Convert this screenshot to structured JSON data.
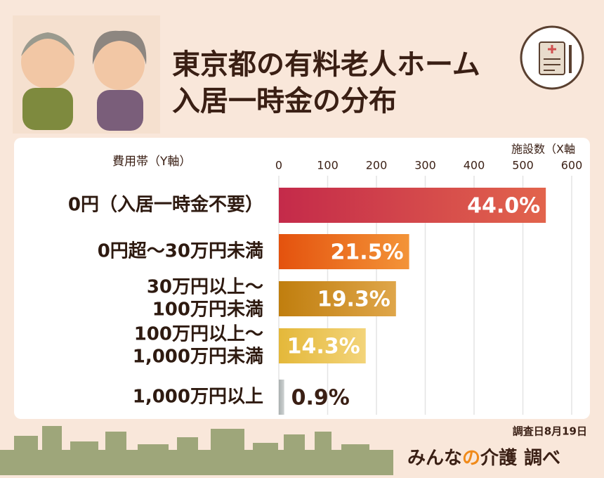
{
  "header": {
    "title_lines": [
      "東京都の有料老人ホーム",
      "入居一時金の分布"
    ]
  },
  "chart_data": {
    "type": "bar",
    "orientation": "horizontal",
    "y_axis_label": "費用帯（Y軸）",
    "x_axis_label": "施設数（X軸",
    "categories": [
      [
        "0円（入居一時金不要）"
      ],
      [
        "0円超～30万円未満"
      ],
      [
        "30万円以上～",
        "100万円未満"
      ],
      [
        "100万円以上～",
        "1,000万円未満"
      ],
      [
        "1,000万円以上"
      ]
    ],
    "values": [
      547,
      267,
      240,
      178,
      11
    ],
    "share_labels": [
      "44.0%",
      "21.5%",
      "19.3%",
      "14.3%",
      "0.9%"
    ],
    "colors": [
      [
        "#c42a4a",
        "#e2644c"
      ],
      [
        "#e4520e",
        "#f39438"
      ],
      [
        "#c07e0e",
        "#dfa64a"
      ],
      [
        "#e4b83a",
        "#f3d47a"
      ],
      [
        "#aab0b0",
        "#ced2d2"
      ]
    ],
    "xlim": [
      0,
      600
    ],
    "xticks": [
      0,
      100,
      200,
      300,
      400,
      500,
      600
    ],
    "grid": true
  },
  "footer": {
    "date": "調査日8月19日",
    "brand": [
      "みんな",
      "の",
      "介護",
      "調べ"
    ]
  }
}
